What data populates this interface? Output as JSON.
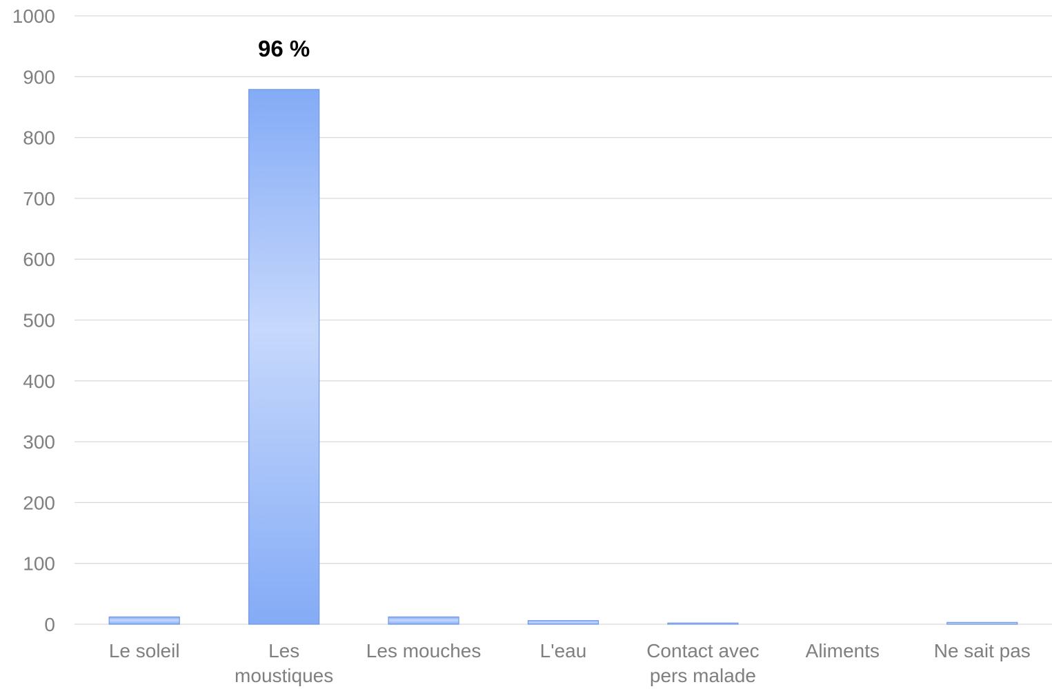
{
  "chart_data": {
    "type": "bar",
    "title": "",
    "xlabel": "",
    "ylabel": "",
    "ylim": [
      0,
      1000
    ],
    "yticks": [
      0,
      100,
      200,
      300,
      400,
      500,
      600,
      700,
      800,
      900,
      1000
    ],
    "categories": [
      [
        "Le soleil"
      ],
      [
        "Les",
        "moustiques"
      ],
      [
        "Les mouches"
      ],
      [
        "L'eau"
      ],
      [
        "Contact avec",
        "pers malade"
      ],
      [
        "Aliments"
      ],
      [
        "Ne sait pas"
      ]
    ],
    "values": [
      12,
      879,
      12,
      6,
      2,
      0,
      3
    ],
    "data_labels": [
      "",
      "96 %",
      "",
      "",
      "",
      "",
      ""
    ],
    "grid": true,
    "legend": "none",
    "colors": {
      "bar_light": "#c6d8fc",
      "bar_dark": "#84abf6",
      "bar_edge": "#6f98e6",
      "grid": "#d9d9d9",
      "axis_text": "#7f7f7f"
    }
  }
}
